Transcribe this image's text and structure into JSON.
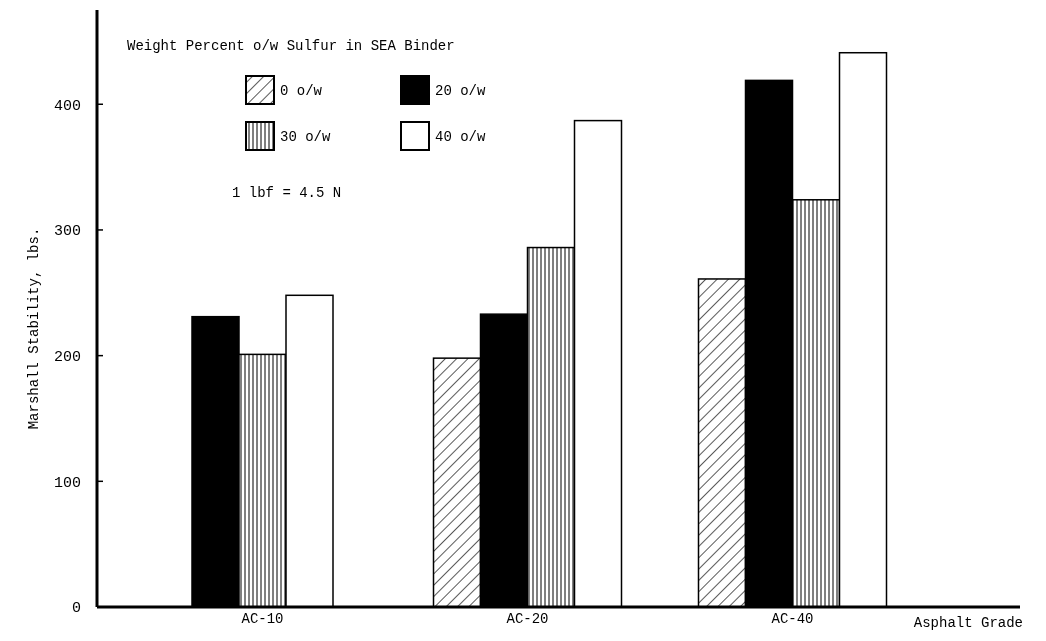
{
  "chart_data": {
    "type": "bar",
    "legend_title": "Weight Percent o/w Sulfur in SEA Binder",
    "xlabel": "Asphalt Grade",
    "ylabel": "Marshall Stability, lbs.",
    "annotations": [
      "1 lbf = 4.5 N"
    ],
    "categories": [
      "AC-10",
      "AC-20",
      "AC-40"
    ],
    "series": [
      {
        "name": "0 o/w",
        "color": "#000000",
        "values": [
          null,
          198,
          261
        ]
      },
      {
        "name": "20 o/w",
        "color": "#000000",
        "values": [
          231,
          233,
          419
        ]
      },
      {
        "name": "30 o/w",
        "color": "#000000",
        "values": [
          201,
          286,
          324
        ]
      },
      {
        "name": "40 o/w",
        "color": "#ffffff",
        "values": [
          248,
          387,
          441
        ]
      }
    ],
    "ylim": [
      0,
      475
    ],
    "yticks": [
      0,
      100,
      200,
      300,
      400
    ],
    "grid": false,
    "legend": "top"
  }
}
